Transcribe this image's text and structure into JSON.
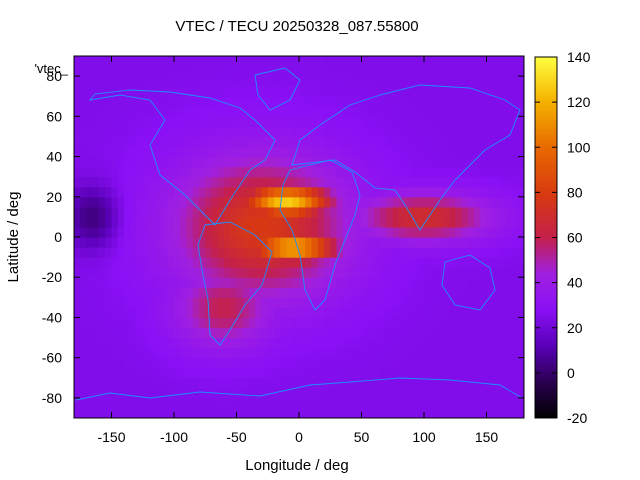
{
  "chart_data": {
    "type": "heatmap",
    "title": "VTEC / TECU 20250328_087.55800",
    "xlabel": "Longitude / deg",
    "ylabel": "Latitude / deg",
    "legend_key": "'vtec_",
    "xlim": [
      -180,
      180
    ],
    "ylim": [
      -90,
      90
    ],
    "x_ticks": [
      -150,
      -100,
      -50,
      0,
      50,
      100,
      150
    ],
    "y_ticks": [
      -80,
      -60,
      -40,
      -20,
      0,
      20,
      40,
      60,
      80
    ],
    "colorbar": {
      "label": "VTEC / TECU",
      "range": [
        -20,
        140
      ],
      "ticks": [
        -20,
        0,
        20,
        40,
        60,
        80,
        100,
        120,
        140
      ]
    },
    "background_value": 22,
    "features": [
      {
        "name": "equatorial anomaly crest north",
        "lon": -10,
        "lat": 18,
        "lon_width": 35,
        "lat_width": 8,
        "value": 128
      },
      {
        "name": "equatorial anomaly crest south",
        "lon": -5,
        "lat": -5,
        "lon_width": 35,
        "lat_width": 8,
        "value": 120
      },
      {
        "name": "main dayside bulge",
        "lon": -30,
        "lat": 5,
        "lon_width": 70,
        "lat_width": 35,
        "value": 78
      },
      {
        "name": "southern extension",
        "lon": -60,
        "lat": -35,
        "lon_width": 40,
        "lat_width": 20,
        "value": 60
      },
      {
        "name": "eastern tongue",
        "lon": 100,
        "lat": 10,
        "lon_width": 55,
        "lat_width": 12,
        "value": 70
      },
      {
        "name": "polar trough",
        "lon": -165,
        "lat": 10,
        "lon_width": 20,
        "lat_width": 15,
        "value": 2
      }
    ]
  }
}
